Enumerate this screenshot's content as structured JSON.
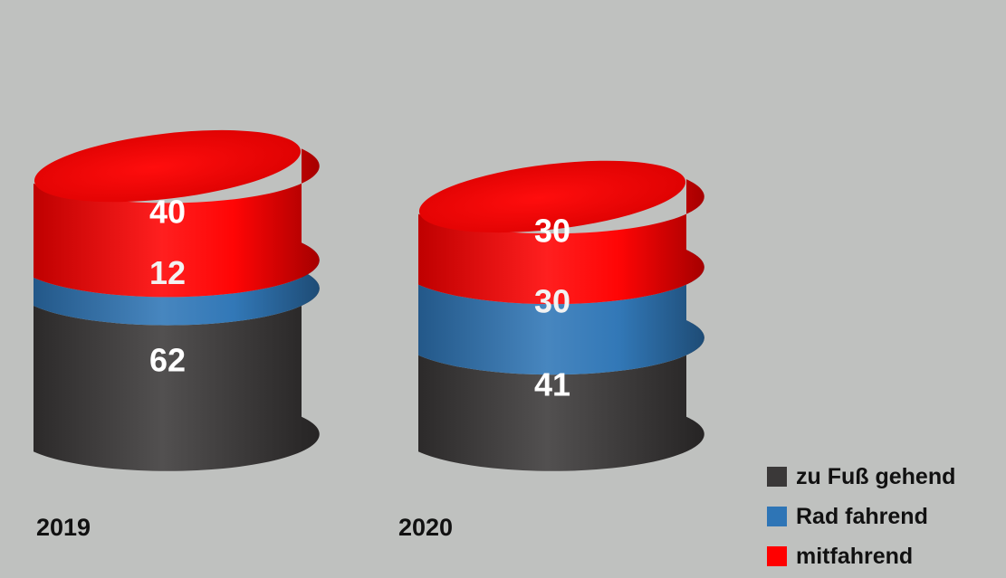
{
  "chart_data": {
    "type": "bar",
    "style": "stacked 3D cylinder",
    "categories": [
      "2019",
      "2020"
    ],
    "series": [
      {
        "name": "zu Fuß gehend",
        "color": "#3a3838",
        "values": [
          62,
          41
        ]
      },
      {
        "name": "Rad fahrend",
        "color": "#2e75b6",
        "values": [
          12,
          30
        ]
      },
      {
        "name": "mitfahrend",
        "color": "#ff0000",
        "values": [
          40,
          30
        ]
      }
    ],
    "title": "",
    "xlabel": "",
    "ylabel": "",
    "legend_placement": "bottom-right",
    "grid": false
  }
}
